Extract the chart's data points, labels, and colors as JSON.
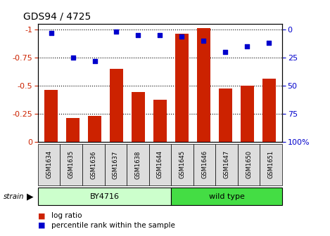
{
  "title": "GDS94 / 4725",
  "samples": [
    "GSM1634",
    "GSM1635",
    "GSM1636",
    "GSM1637",
    "GSM1638",
    "GSM1644",
    "GSM1645",
    "GSM1646",
    "GSM1647",
    "GSM1650",
    "GSM1651"
  ],
  "log_ratio": [
    -0.46,
    -0.21,
    -0.23,
    -0.65,
    -0.44,
    -0.37,
    -0.96,
    -1.01,
    -0.47,
    -0.5,
    -0.56
  ],
  "percentile_rank": [
    3,
    25,
    28,
    2,
    5,
    5,
    6,
    10,
    20,
    15,
    12
  ],
  "groups": [
    {
      "label": "BY4716",
      "start": 0,
      "end": 6,
      "color": "#ccffcc"
    },
    {
      "label": "wild type",
      "start": 6,
      "end": 11,
      "color": "#44dd44"
    }
  ],
  "bar_color": "#cc2200",
  "dot_color": "#0000cc",
  "ylim_left": [
    0.0,
    -1.05
  ],
  "ylim_right": [
    100,
    -5.25
  ],
  "yticks_left": [
    0,
    -0.25,
    -0.5,
    -0.75,
    -1.0
  ],
  "yticks_right": [
    100,
    75,
    50,
    25,
    0
  ],
  "grid_color": "black",
  "background_color": "white",
  "axis_color_left": "#cc2200",
  "axis_color_right": "#0000cc",
  "legend_log_ratio": "log ratio",
  "legend_percentile": "percentile rank within the sample",
  "strain_label": "strain",
  "figsize": [
    4.69,
    3.36
  ],
  "dpi": 100
}
